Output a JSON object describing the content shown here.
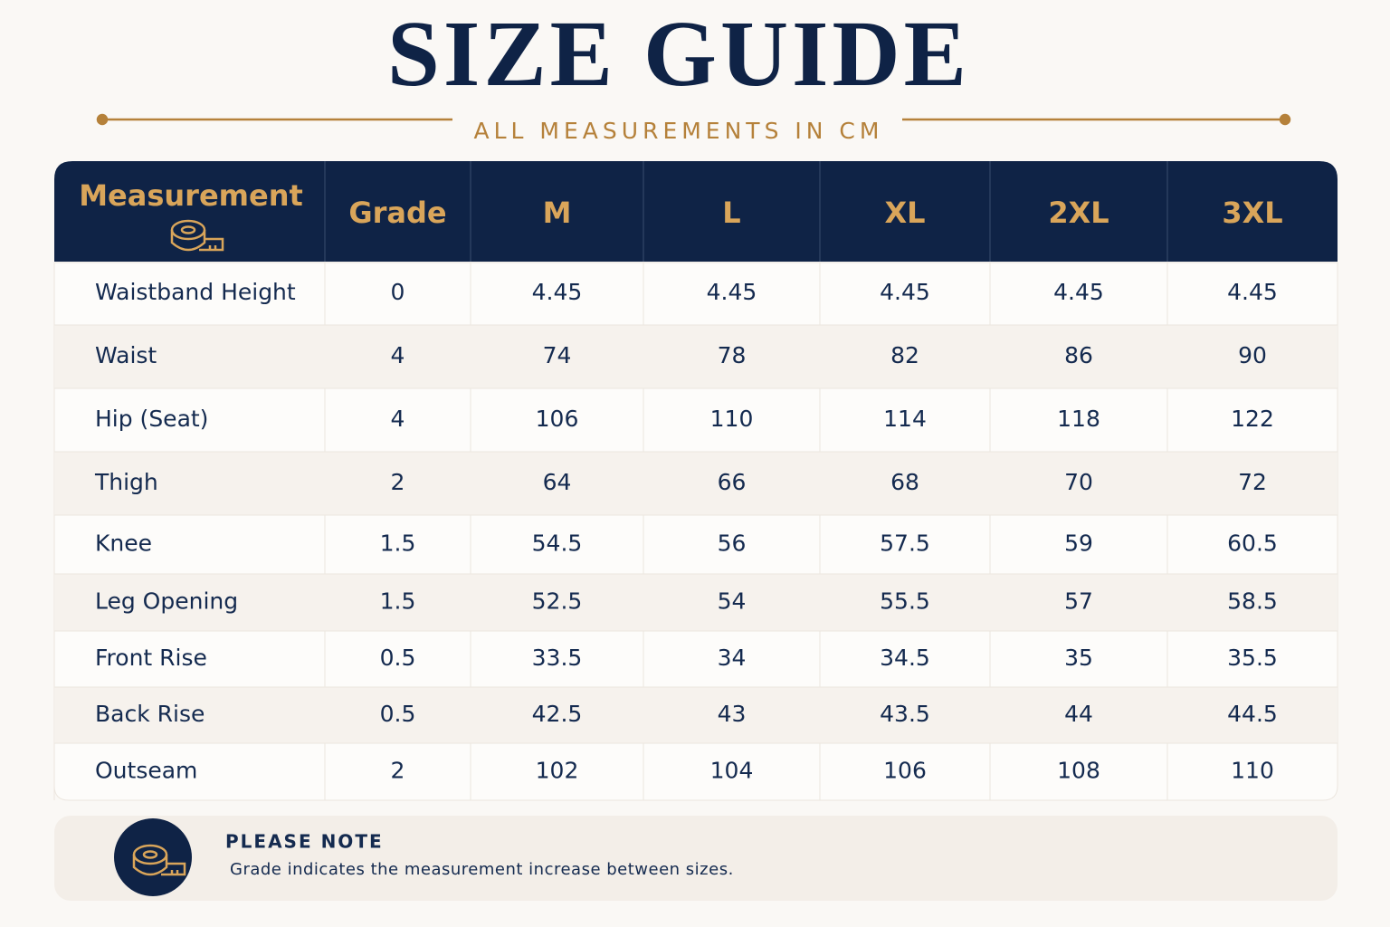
{
  "header": {
    "title": "SIZE GUIDE",
    "subtitle": "ALL MEASUREMENTS IN CM"
  },
  "table": {
    "columns": [
      "Measurement",
      "Grade",
      "M",
      "L",
      "XL",
      "2XL",
      "3XL"
    ],
    "rows": [
      [
        "Waistband Height",
        0,
        4.45,
        4.45,
        4.45,
        4.45,
        4.45
      ],
      [
        "Waist",
        4,
        74,
        78,
        82,
        86,
        90
      ],
      [
        "Hip (Seat)",
        4,
        106,
        110,
        114,
        118,
        122
      ],
      [
        "Thigh",
        2,
        64,
        66,
        68,
        70,
        72
      ],
      [
        "Knee",
        1.5,
        54.5,
        56,
        57.5,
        59,
        60.5
      ],
      [
        "Leg Opening",
        1.5,
        52.5,
        54,
        55.5,
        57,
        58.5
      ],
      [
        "Front Rise",
        0.5,
        33.5,
        34,
        34.5,
        35,
        35.5
      ],
      [
        "Back Rise",
        0.5,
        42.5,
        43,
        43.5,
        44,
        44.5
      ],
      [
        "Outseam",
        2,
        102,
        104,
        106,
        108,
        110
      ]
    ]
  },
  "note": {
    "title": "PLEASE NOTE",
    "text": "Grade indicates the measurement increase between sizes."
  }
}
